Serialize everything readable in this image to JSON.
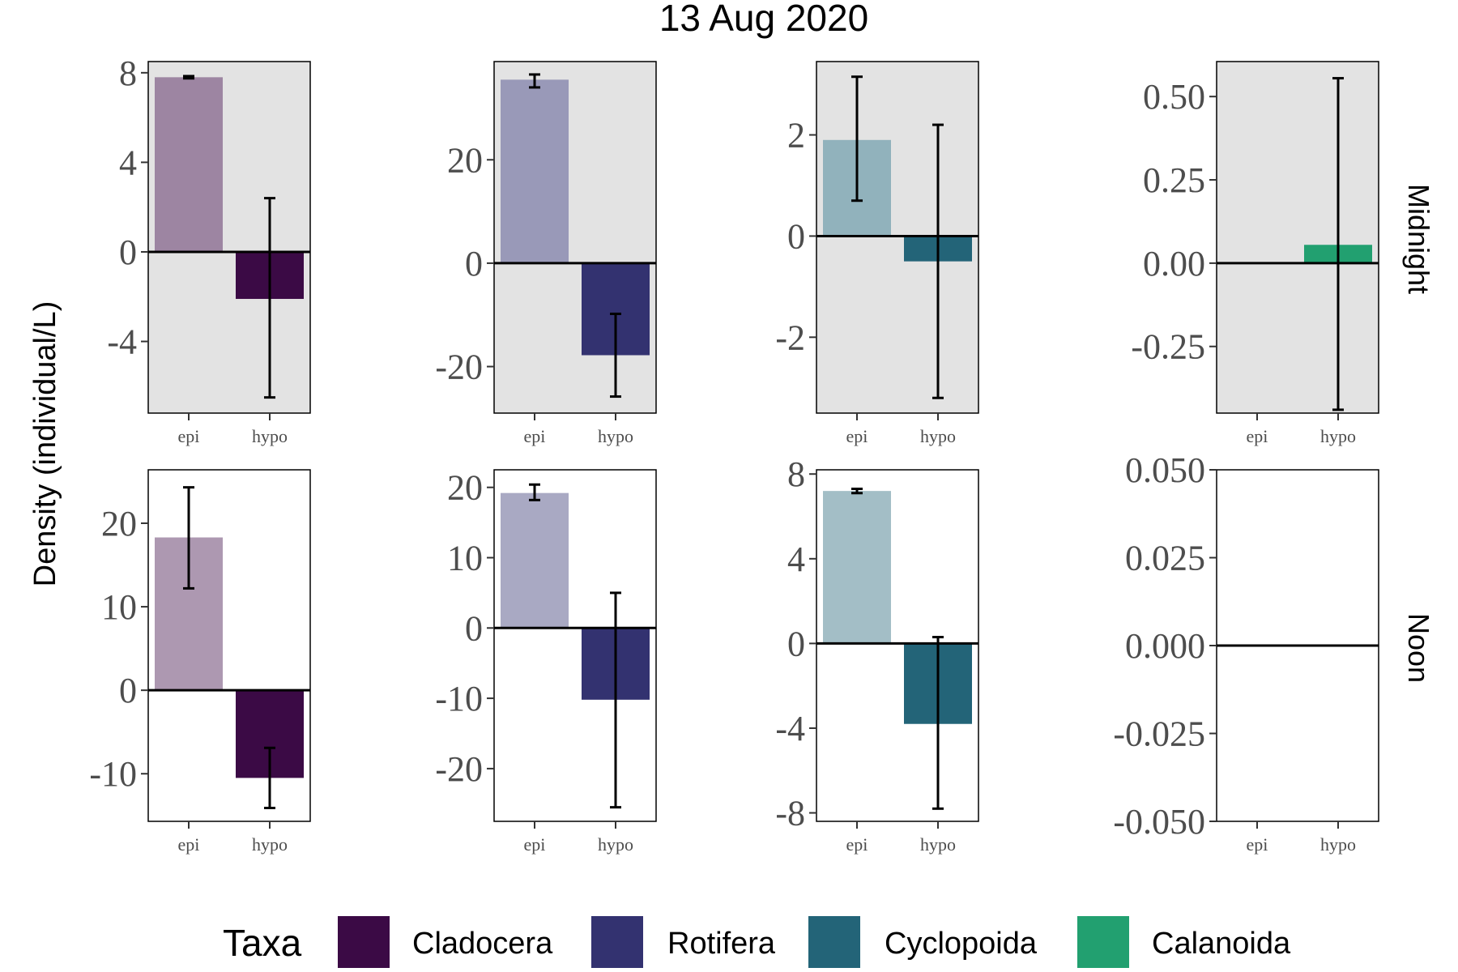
{
  "chart_data": {
    "type": "bar",
    "title": "13 Aug 2020",
    "ylabel": "Density (individual/L)",
    "categories": [
      "epi",
      "hypo"
    ],
    "rows": [
      "Midnight",
      "Noon"
    ],
    "columns": [
      "Cladocera",
      "Rotifera",
      "Cyclopoida",
      "Calanoida"
    ],
    "legend": {
      "title": "Taxa",
      "position": "bottom",
      "entries": [
        {
          "name": "Cladocera",
          "color": "#3b0a45"
        },
        {
          "name": "Rotifera",
          "color": "#333270"
        },
        {
          "name": "Cyclopoida",
          "color": "#236478"
        },
        {
          "name": "Calanoida",
          "color": "#22a070"
        }
      ]
    },
    "panels": [
      {
        "row": "Midnight",
        "taxon": "Cladocera",
        "ylim": [
          -7.2,
          8.5
        ],
        "ticks": [
          -4,
          0,
          4,
          8
        ],
        "tick_labels": [
          "-4",
          "0",
          "4",
          "8"
        ],
        "background": "grey",
        "values": [
          7.8,
          -2.1
        ],
        "errors": [
          [
            7.75,
            7.85
          ],
          [
            -6.5,
            2.4
          ]
        ]
      },
      {
        "row": "Midnight",
        "taxon": "Rotifera",
        "ylim": [
          -29,
          39
        ],
        "ticks": [
          -20,
          0,
          20
        ],
        "tick_labels": [
          "-20",
          "0",
          "20"
        ],
        "background": "grey",
        "values": [
          35.5,
          -17.8
        ],
        "errors": [
          [
            34.0,
            36.5
          ],
          [
            -25.8,
            -9.8
          ]
        ]
      },
      {
        "row": "Midnight",
        "taxon": "Cyclopoida",
        "ylim": [
          -3.5,
          3.45
        ],
        "ticks": [
          -2,
          0,
          2
        ],
        "tick_labels": [
          "-2",
          "0",
          "2"
        ],
        "background": "grey",
        "values": [
          1.9,
          -0.5
        ],
        "errors": [
          [
            0.7,
            3.15
          ],
          [
            -3.2,
            2.2
          ]
        ]
      },
      {
        "row": "Midnight",
        "taxon": "Calanoida",
        "ylim": [
          -0.45,
          0.605
        ],
        "ticks": [
          -0.25,
          0,
          0.25,
          0.5
        ],
        "tick_labels": [
          "-0.25",
          "0.00",
          "0.25",
          "0.50"
        ],
        "background": "grey",
        "values": [
          0,
          0.055
        ],
        "errors": [
          null,
          [
            -0.44,
            0.555
          ]
        ]
      },
      {
        "row": "Noon",
        "taxon": "Cladocera",
        "ylim": [
          -15.7,
          26.4
        ],
        "ticks": [
          -10,
          0,
          10,
          20
        ],
        "tick_labels": [
          "-10",
          "0",
          "10",
          "20"
        ],
        "background": "white",
        "values": [
          18.3,
          -10.5
        ],
        "errors": [
          [
            12.2,
            24.3
          ],
          [
            -14.1,
            -6.9
          ]
        ]
      },
      {
        "row": "Noon",
        "taxon": "Rotifera",
        "ylim": [
          -27.5,
          22.5
        ],
        "ticks": [
          -20,
          -10,
          0,
          10,
          20
        ],
        "tick_labels": [
          "-20",
          "-10",
          "0",
          "10",
          "20"
        ],
        "background": "white",
        "values": [
          19.2,
          -10.2
        ],
        "errors": [
          [
            18.2,
            20.4
          ],
          [
            -25.5,
            5.0
          ]
        ]
      },
      {
        "row": "Noon",
        "taxon": "Cyclopoida",
        "ylim": [
          -8.4,
          8.2
        ],
        "ticks": [
          -8,
          -4,
          0,
          4,
          8
        ],
        "tick_labels": [
          "-8",
          "-4",
          "0",
          "4",
          "8"
        ],
        "background": "white",
        "values": [
          7.2,
          -3.8
        ],
        "errors": [
          [
            7.1,
            7.3
          ],
          [
            -7.8,
            0.3
          ]
        ]
      },
      {
        "row": "Noon",
        "taxon": "Calanoida",
        "ylim": [
          -0.05,
          0.05
        ],
        "ticks": [
          -0.05,
          -0.025,
          0,
          0.025,
          0.05
        ],
        "tick_labels": [
          "-0.050",
          "-0.025",
          "0.000",
          "0.025",
          "0.050"
        ],
        "background": "white",
        "values": [
          0,
          0
        ],
        "errors": [
          null,
          null
        ]
      }
    ]
  }
}
